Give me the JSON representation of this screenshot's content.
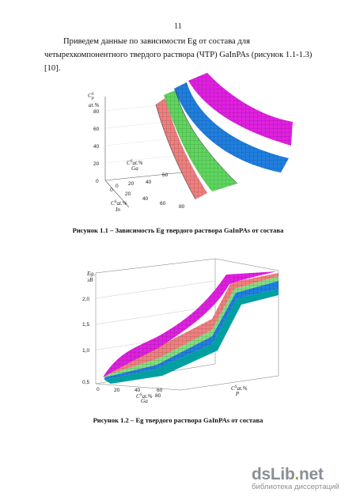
{
  "page_number": "11",
  "paragraph": "Приведем данные по зависимости Eg от состава для четырехкомпонентного твердого раствора (ЧТР) GaInPAs (рисунок 1.1-1.3)[10].",
  "figure1": {
    "caption": "Рисунок 1.1 – Зависимость Eg твердого раствора GaInPAs от состава",
    "z_label": "C",
    "z_label_sup": "S",
    "z_label_sub": "P",
    "z_label_unit": "at.%",
    "z_ticks": [
      "0",
      "20",
      "40",
      "60",
      "80"
    ],
    "ga_label": "C",
    "ga_label_sup": "S",
    "ga_label_sub": "Ga",
    "ga_label_unit": "at.%",
    "ga_ticks": [
      "0",
      "20",
      "40",
      "60"
    ],
    "in_label": "C",
    "in_label_sup": "S",
    "in_label_sub": "In",
    "in_label_unit": "at.%",
    "in_ticks": [
      "0",
      "20",
      "40",
      "60",
      "80"
    ],
    "surface_colors": [
      "#f07f7f",
      "#5fd65f",
      "#1f7fe0",
      "#e020e0"
    ]
  },
  "figure2": {
    "caption": "Рисунок 1.2 – Eg твердого раствора GaInPAs от состава",
    "y_label": "Eg,",
    "y_label_unit": "эВ",
    "y_ticks": [
      "0,5",
      "1,0",
      "1,5",
      "2,0"
    ],
    "ga_label": "C",
    "ga_label_sup": "S",
    "ga_label_sub": "Ga",
    "ga_label_unit": "at.%",
    "ga_ticks": [
      "0",
      "20",
      "40",
      "60",
      "80"
    ],
    "p_label": "C",
    "p_label_sup": "S",
    "p_label_sub": "P",
    "p_label_unit": "at.%",
    "surface_colors": [
      "#e020e0",
      "#f07f7f",
      "#7fe07f",
      "#1f7fe0",
      "#00a0a0"
    ]
  },
  "watermark": {
    "brand_a": "dsLib",
    "brand_dot": ".",
    "brand_b": "net",
    "tagline": "библиотека диссертаций"
  }
}
